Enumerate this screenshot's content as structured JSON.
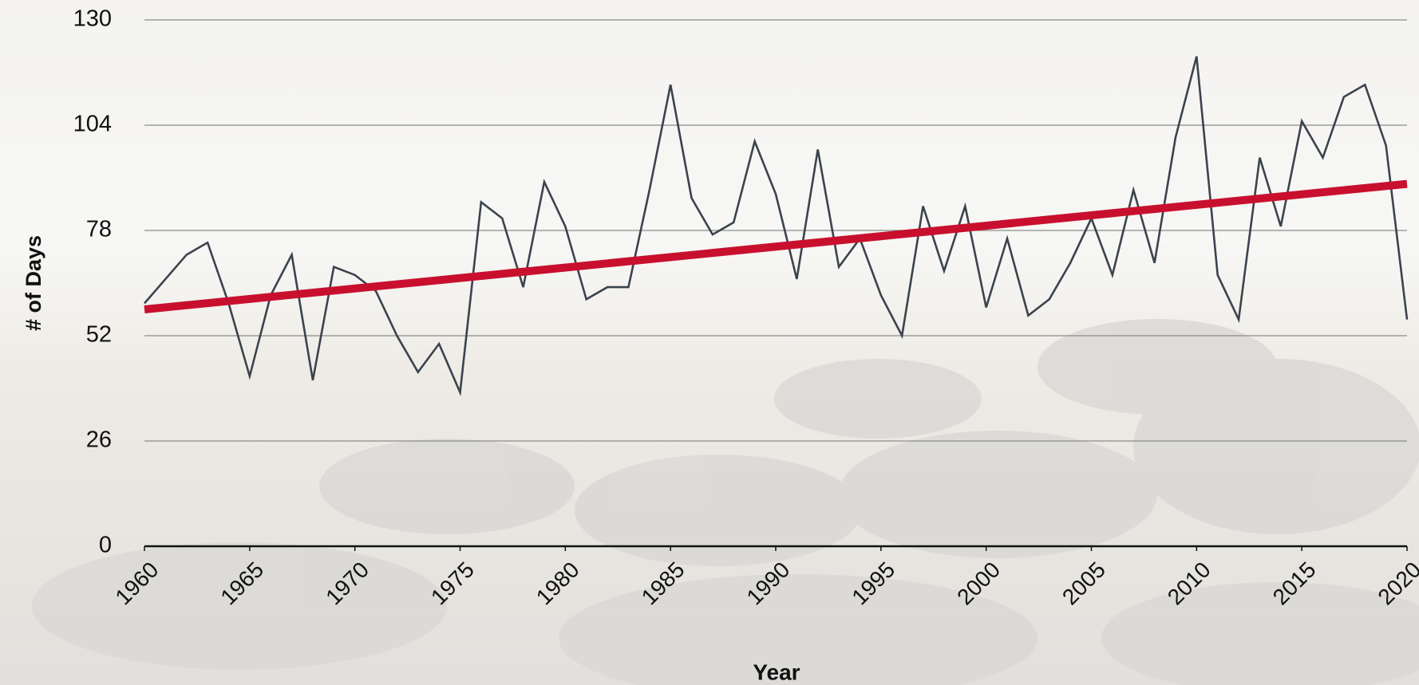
{
  "chart_data": {
    "type": "line",
    "x_label": "Year",
    "y_label": "# of Days",
    "x": [
      1960,
      1961,
      1962,
      1963,
      1964,
      1965,
      1966,
      1967,
      1968,
      1969,
      1970,
      1971,
      1972,
      1973,
      1974,
      1975,
      1976,
      1977,
      1978,
      1979,
      1980,
      1981,
      1982,
      1983,
      1984,
      1985,
      1986,
      1987,
      1988,
      1989,
      1990,
      1991,
      1992,
      1993,
      1994,
      1995,
      1996,
      1997,
      1998,
      1999,
      2000,
      2001,
      2002,
      2003,
      2004,
      2005,
      2006,
      2007,
      2008,
      2009,
      2010,
      2011,
      2012,
      2013,
      2014,
      2015,
      2016,
      2017,
      2018,
      2019,
      2020
    ],
    "values": [
      60,
      66,
      72,
      75,
      60,
      42,
      62,
      72,
      41,
      69,
      67,
      63,
      52,
      43,
      50,
      38,
      85,
      81,
      64,
      90,
      79,
      61,
      64,
      64,
      88,
      114,
      86,
      77,
      80,
      100,
      87,
      66,
      98,
      69,
      76,
      62,
      52,
      84,
      68,
      84,
      59,
      76,
      57,
      61,
      70,
      81,
      67,
      88,
      70,
      101,
      121,
      67,
      56,
      96,
      79,
      105,
      96,
      111,
      114,
      99,
      56
    ],
    "color": "#3b434d",
    "trend": {
      "x": [
        1960,
        2020
      ],
      "values": [
        58.5,
        89.5
      ],
      "color": "#c8102e"
    },
    "xlim": [
      1960,
      2020
    ],
    "xticks": [
      1960,
      1965,
      1970,
      1975,
      1980,
      1985,
      1990,
      1995,
      2000,
      2005,
      2010,
      2015,
      2020
    ],
    "ylim": [
      0,
      130
    ],
    "yticks": [
      0,
      26,
      52,
      78,
      104,
      130
    ],
    "grid": true
  }
}
